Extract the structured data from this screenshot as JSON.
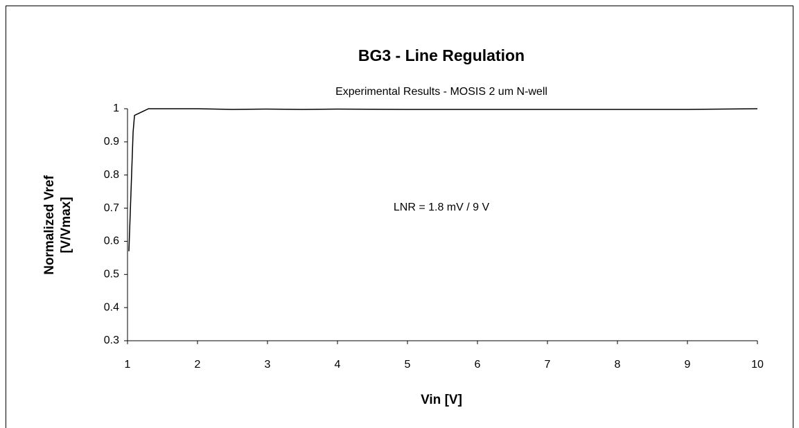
{
  "chart_data": {
    "type": "line",
    "title": "BG3 - Line Regulation",
    "subtitle": "Experimental Results - MOSIS 2 um N-well",
    "xlabel": "Vin  [V]",
    "ylabel": [
      "Normalized Vref",
      "[V/Vmax]"
    ],
    "annotation": "LNR = 1.8 mV / 9 V",
    "x": [
      1.02,
      1.05,
      1.08,
      1.1,
      1.2,
      1.3,
      1.5,
      2,
      2.5,
      3,
      3.5,
      4,
      5,
      6,
      7,
      8,
      9,
      9.5,
      10
    ],
    "series": [
      {
        "name": "Vref",
        "color": "#000000",
        "values": [
          0.57,
          0.75,
          0.93,
          0.98,
          0.99,
          1.0,
          1.0,
          1.0,
          0.998,
          0.999,
          0.998,
          0.999,
          0.998,
          0.998,
          0.998,
          0.998,
          0.998,
          0.999,
          1.0
        ]
      }
    ],
    "xlim": [
      1,
      10
    ],
    "xticks": [
      1,
      2,
      3,
      4,
      5,
      6,
      7,
      8,
      9,
      10
    ],
    "ylim": [
      0.3,
      1
    ],
    "yticks": [
      0.3,
      0.4,
      0.5,
      0.6,
      0.7,
      0.8,
      0.9,
      1
    ],
    "grid": false
  }
}
